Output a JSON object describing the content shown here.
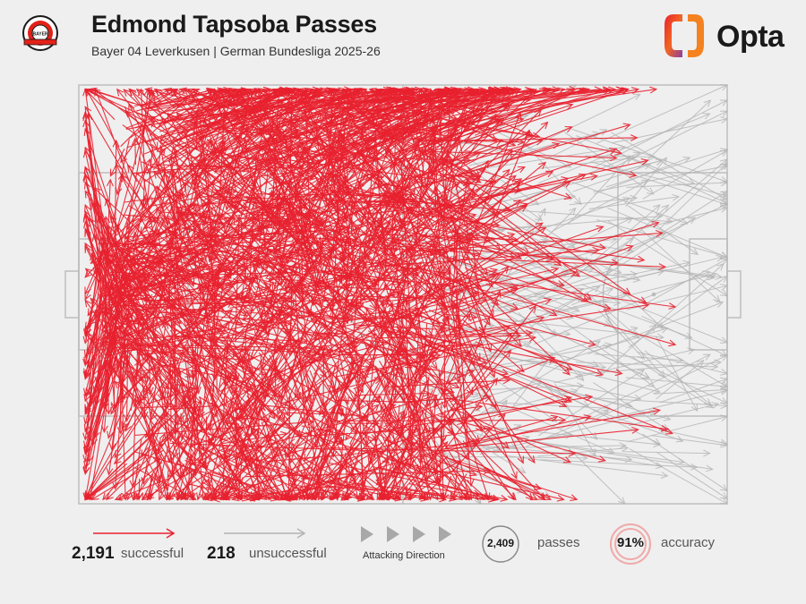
{
  "header": {
    "title": "Edmond Tapsoba Passes",
    "subtitle": "Bayer 04 Leverkusen | German Bundesliga 2025-26",
    "brand": "Opta",
    "crest_text": "BAYER 04 LEVERKUSEN",
    "crest_center": "BAYER"
  },
  "legend": {
    "successful_count": "2,191",
    "successful_label": "successful",
    "unsuccessful_count": "218",
    "unsuccessful_label": "unsuccessful",
    "direction_label": "Attacking Direction",
    "passes_count": "2,409",
    "passes_label": "passes",
    "accuracy_value": "91%",
    "accuracy_label": "accuracy"
  },
  "colors": {
    "successful": "#e8212f",
    "unsuccessful": "#b4b4b4",
    "pitch_lines": "#bdbdbd",
    "background": "#efefef",
    "accuracy_ring": "#f0a9a9"
  },
  "chart_data": {
    "type": "pass_map",
    "units": "percent of pitch length (x, attacking left to right) and width (y, from top touchline)",
    "x_range": [
      0,
      100
    ],
    "y_range": [
      0,
      100
    ],
    "attacking_direction": "left-to-right",
    "series": [
      {
        "name": "successful",
        "count": 2191,
        "color": "#e8212f"
      },
      {
        "name": "unsuccessful",
        "count": 218,
        "color": "#b4b4b4"
      }
    ],
    "total_passes": 2409,
    "accuracy_pct": 91,
    "sample_passes": [
      {
        "x1": 4,
        "y1": 50,
        "x2": 20,
        "y2": 30,
        "outcome": "successful"
      },
      {
        "x1": 18,
        "y1": 22,
        "x2": 46,
        "y2": 4,
        "outcome": "successful"
      },
      {
        "x1": 30,
        "y1": 40,
        "x2": 62,
        "y2": 16,
        "outcome": "successful"
      },
      {
        "x1": 46,
        "y1": 58,
        "x2": 72,
        "y2": 34,
        "outcome": "successful"
      },
      {
        "x1": 22,
        "y1": 70,
        "x2": 40,
        "y2": 98,
        "outcome": "successful"
      },
      {
        "x1": 60,
        "y1": 30,
        "x2": 90,
        "y2": 18,
        "outcome": "unsuccessful"
      },
      {
        "x1": 64,
        "y1": 52,
        "x2": 88,
        "y2": 70,
        "outcome": "unsuccessful"
      },
      {
        "x1": 70,
        "y1": 40,
        "x2": 98,
        "y2": 46,
        "outcome": "unsuccessful"
      },
      {
        "x1": 55,
        "y1": 85,
        "x2": 62,
        "y2": 100,
        "outcome": "unsuccessful"
      }
    ]
  }
}
